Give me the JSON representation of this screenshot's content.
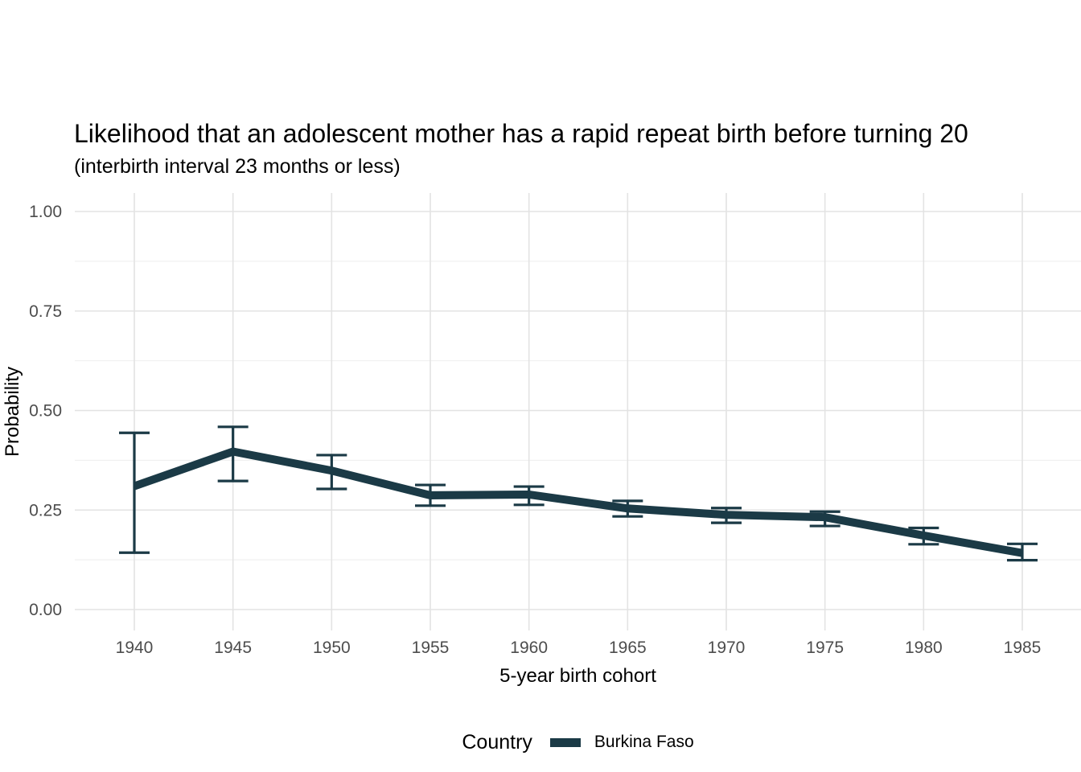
{
  "chart_data": {
    "type": "line",
    "title": "Likelihood that an adolescent mother has a rapid repeat birth before turning 20",
    "subtitle": "(interbirth interval 23 months or less)",
    "xlabel": "5-year birth cohort",
    "ylabel": "Probability",
    "ylim": [
      0,
      1
    ],
    "grid": "on",
    "legend_position": "bottom",
    "legend": {
      "title": "Country"
    },
    "x": [
      1940,
      1945,
      1950,
      1955,
      1960,
      1965,
      1970,
      1975,
      1980,
      1985
    ],
    "x_ticks": [
      {
        "value": 1940,
        "label": "1940"
      },
      {
        "value": 1945,
        "label": "1945"
      },
      {
        "value": 1950,
        "label": "1950"
      },
      {
        "value": 1955,
        "label": "1955"
      },
      {
        "value": 1960,
        "label": "1960"
      },
      {
        "value": 1965,
        "label": "1965"
      },
      {
        "value": 1970,
        "label": "1970"
      },
      {
        "value": 1975,
        "label": "1975"
      },
      {
        "value": 1980,
        "label": "1980"
      },
      {
        "value": 1985,
        "label": "1985"
      }
    ],
    "y_ticks": [
      {
        "value": 0.0,
        "label": "0.00"
      },
      {
        "value": 0.25,
        "label": "0.25"
      },
      {
        "value": 0.5,
        "label": "0.50"
      },
      {
        "value": 0.75,
        "label": "0.75"
      },
      {
        "value": 1.0,
        "label": "1.00"
      }
    ],
    "y_minor_ticks": [
      0.125,
      0.375,
      0.625,
      0.875
    ],
    "series": [
      {
        "name": "Burkina Faso",
        "color": "#1b3a46",
        "values": [
          0.31,
          0.397,
          0.349,
          0.287,
          0.289,
          0.254,
          0.238,
          0.232,
          0.186,
          0.142
        ],
        "ci_low": [
          0.143,
          0.323,
          0.303,
          0.261,
          0.263,
          0.234,
          0.218,
          0.21,
          0.164,
          0.124
        ],
        "ci_high": [
          0.444,
          0.459,
          0.388,
          0.313,
          0.309,
          0.273,
          0.255,
          0.246,
          0.205,
          0.165
        ]
      }
    ],
    "colors": {
      "line": "#1b3a46",
      "grid_major": "#e3e3e3",
      "grid_minor": "#eeeeee",
      "tick_label": "#4d4d4d",
      "text": "#000000"
    }
  }
}
